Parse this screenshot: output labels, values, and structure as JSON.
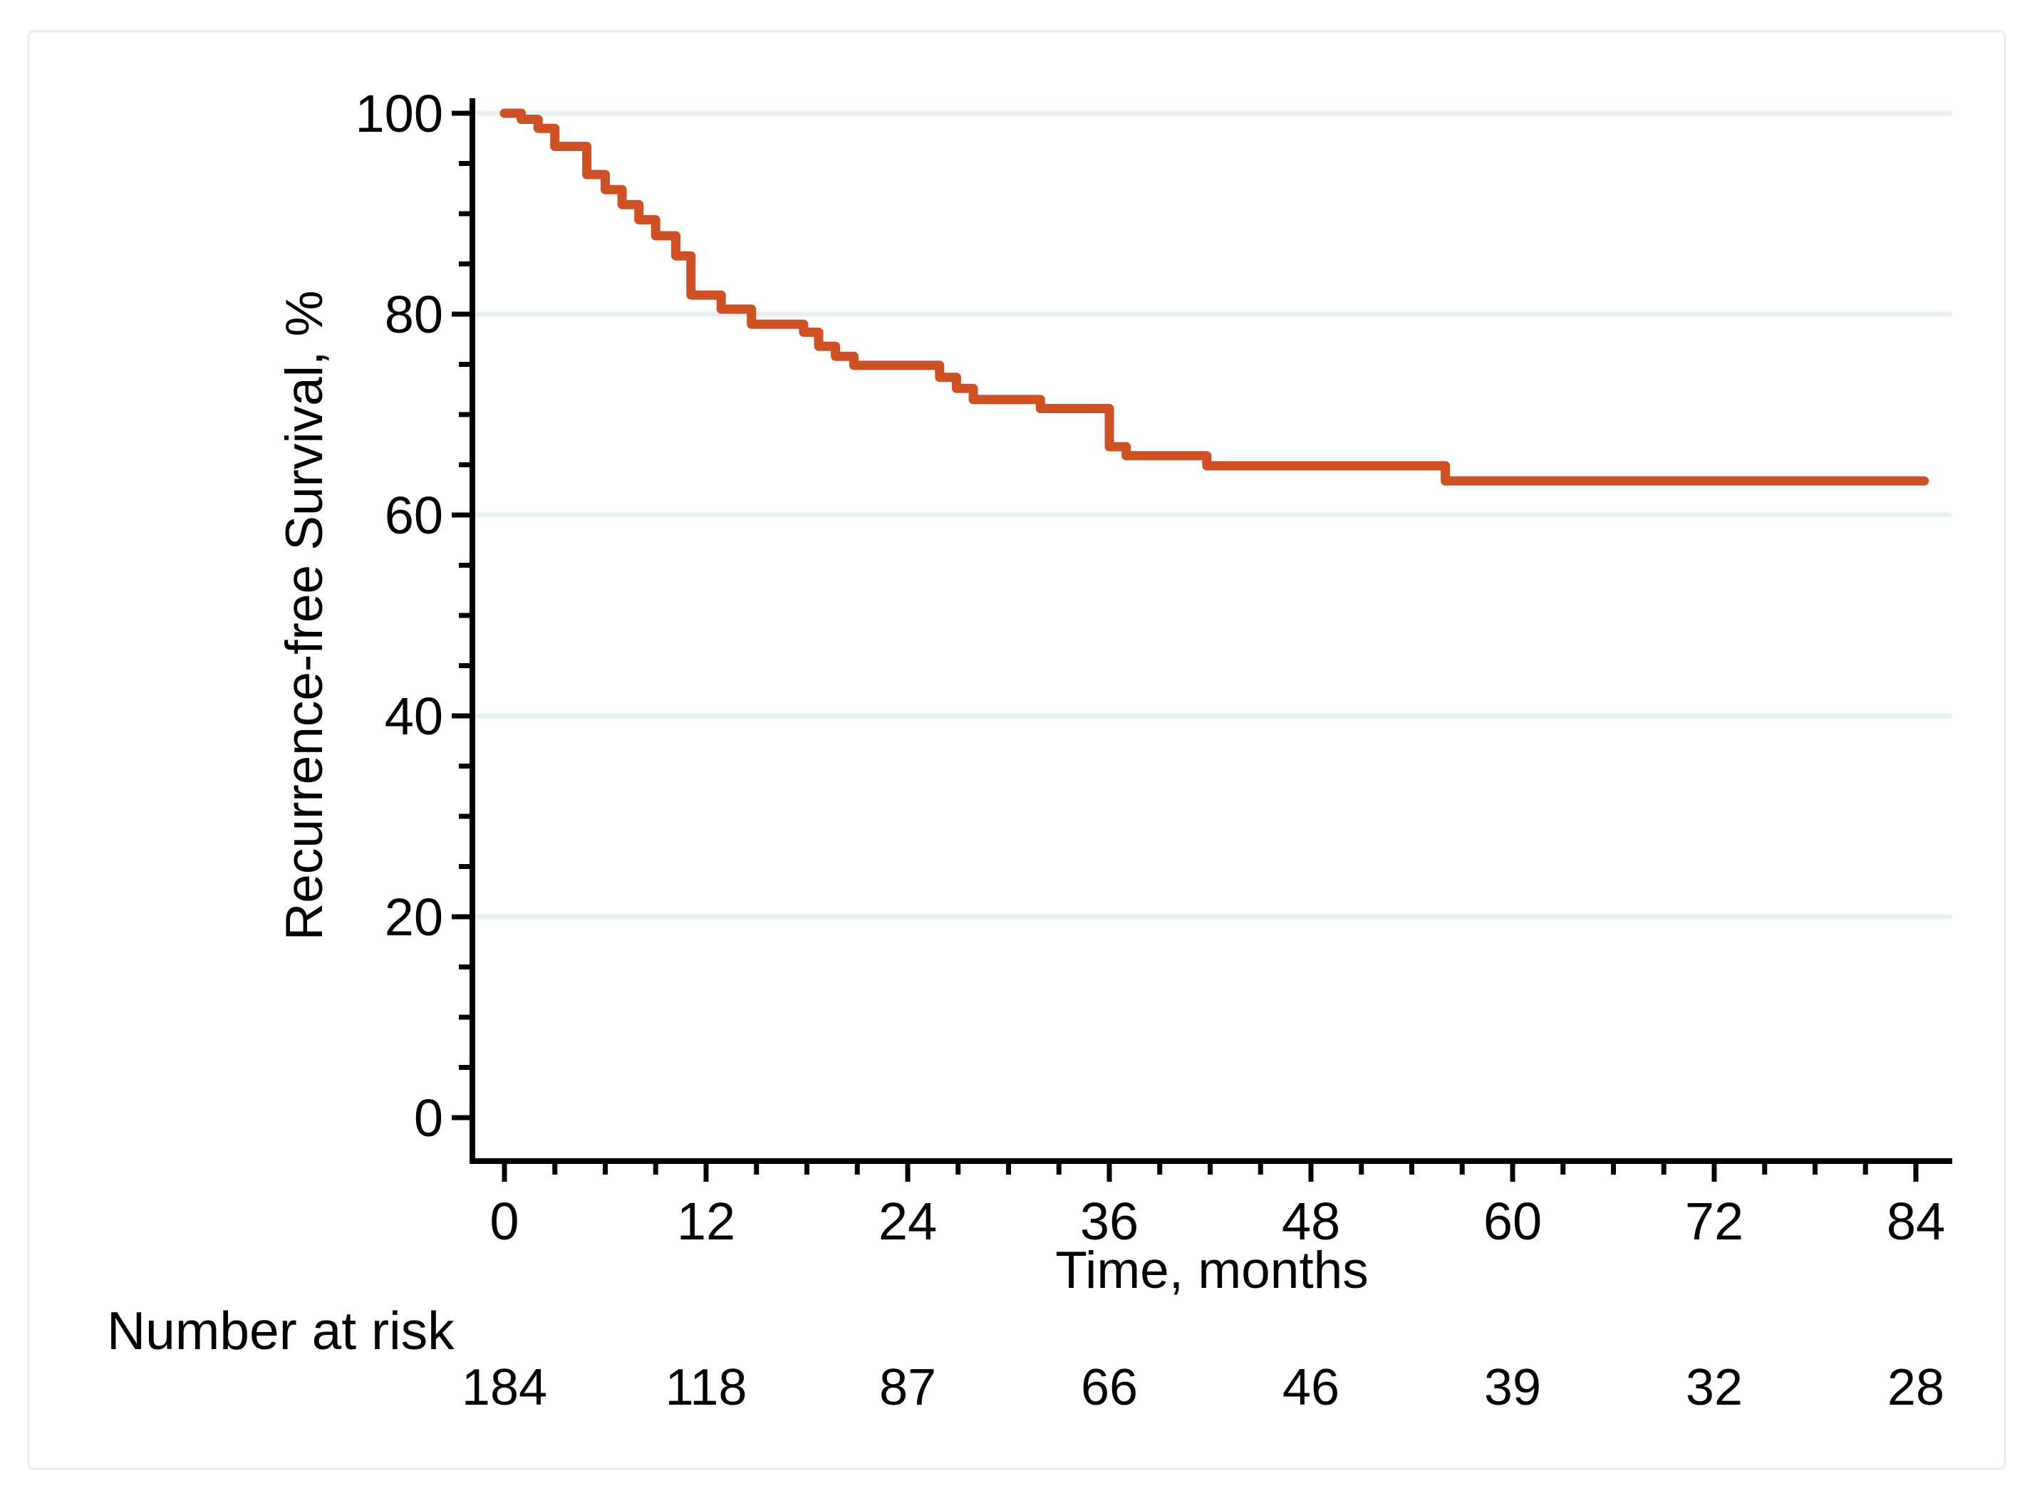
{
  "figure": {
    "background": "#ffffff",
    "frame_color": "#e7eef2"
  },
  "chart_data": {
    "type": "km-step-line",
    "title": "",
    "xlabel": "Time, months",
    "ylabel": "Recurrence-free Survival, %",
    "xlim": [
      0,
      84
    ],
    "ylim": [
      0,
      100
    ],
    "x_ticks": [
      0,
      12,
      24,
      36,
      48,
      60,
      72,
      84
    ],
    "x_minor_tick_interval": 3,
    "y_ticks": [
      0,
      20,
      40,
      60,
      80,
      100
    ],
    "y_minor_tick_interval": 5,
    "gridlines_at": [
      20,
      40,
      60,
      80,
      100
    ],
    "grid_on": true,
    "grid_color": "#e9f0f2",
    "axis_color": "#000000",
    "legend_position": "none",
    "series": [
      {
        "name": "Recurrence-free survival",
        "color": "#ce5125",
        "steps": [
          [
            0,
            100
          ],
          [
            1,
            99.4
          ],
          [
            2,
            98.5
          ],
          [
            3,
            96.7
          ],
          [
            4.9,
            93.9
          ],
          [
            6,
            92.4
          ],
          [
            7,
            90.9
          ],
          [
            8,
            89.4
          ],
          [
            9,
            87.8
          ],
          [
            10.2,
            85.8
          ],
          [
            11.1,
            81.9
          ],
          [
            12.9,
            80.5
          ],
          [
            14.7,
            79.0
          ],
          [
            17.8,
            78.2
          ],
          [
            18.7,
            76.8
          ],
          [
            19.7,
            75.8
          ],
          [
            20.8,
            74.9
          ],
          [
            25.9,
            73.7
          ],
          [
            26.9,
            72.6
          ],
          [
            27.9,
            71.5
          ],
          [
            31.9,
            70.6
          ],
          [
            36,
            66.8
          ],
          [
            37,
            65.9
          ],
          [
            41.8,
            64.9
          ],
          [
            56,
            63.4
          ]
        ],
        "end_time": 84.5
      }
    ],
    "at_risk": {
      "label": "Number at risk",
      "times": [
        0,
        12,
        24,
        36,
        48,
        60,
        72,
        84
      ],
      "counts": [
        184,
        118,
        87,
        66,
        46,
        39,
        32,
        28
      ]
    }
  }
}
